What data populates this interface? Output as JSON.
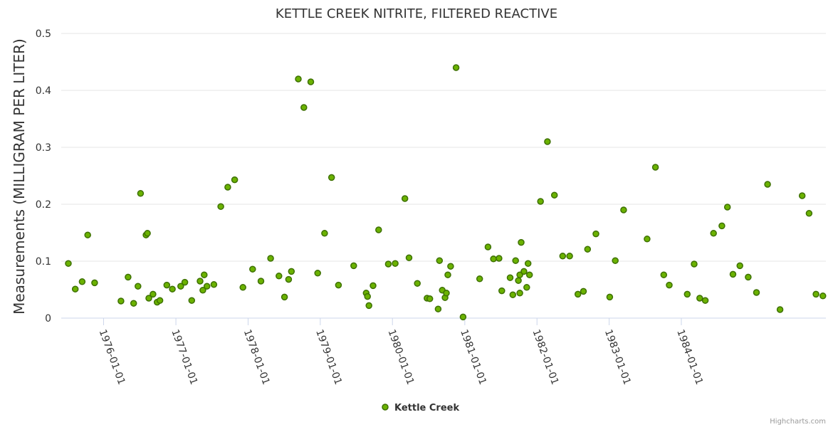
{
  "chart_data": {
    "type": "scatter",
    "title": "KETTLE CREEK NITRITE, FILTERED REACTIVE",
    "ylabel": "Measurements (MILLIGRAM PER LITER)",
    "xlabel": "",
    "ylim": [
      0,
      0.5
    ],
    "yticks": [
      "0",
      "0.1",
      "0.2",
      "0.3",
      "0.4",
      "0.5"
    ],
    "xticks": [
      "1976-01-01",
      "1977-01-01",
      "1978-01-01",
      "1979-01-01",
      "1980-01-01",
      "1981-01-01",
      "1982-01-01",
      "1983-01-01",
      "1984-01-01"
    ],
    "grid": true,
    "legend_position": "bottom-center",
    "marker_fill": "#6bb200",
    "marker_stroke": "#3d7000",
    "series": [
      {
        "name": "Kettle Creek",
        "points": [
          {
            "x": "1975-07-07",
            "y": 0.096
          },
          {
            "x": "1975-08-11",
            "y": 0.051
          },
          {
            "x": "1975-09-15",
            "y": 0.064
          },
          {
            "x": "1975-10-13",
            "y": 0.146
          },
          {
            "x": "1975-11-17",
            "y": 0.062
          },
          {
            "x": "1976-03-29",
            "y": 0.03
          },
          {
            "x": "1976-05-04",
            "y": 0.072
          },
          {
            "x": "1976-06-01",
            "y": 0.026
          },
          {
            "x": "1976-06-23",
            "y": 0.056
          },
          {
            "x": "1976-07-06",
            "y": 0.219
          },
          {
            "x": "1976-08-03",
            "y": 0.146
          },
          {
            "x": "1976-08-10",
            "y": 0.149
          },
          {
            "x": "1976-08-17",
            "y": 0.035
          },
          {
            "x": "1976-09-07",
            "y": 0.042
          },
          {
            "x": "1976-09-28",
            "y": 0.028
          },
          {
            "x": "1976-10-12",
            "y": 0.031
          },
          {
            "x": "1976-11-16",
            "y": 0.058
          },
          {
            "x": "1976-12-14",
            "y": 0.051
          },
          {
            "x": "1977-01-25",
            "y": 0.056
          },
          {
            "x": "1977-02-15",
            "y": 0.063
          },
          {
            "x": "1977-03-22",
            "y": 0.031
          },
          {
            "x": "1977-05-03",
            "y": 0.065
          },
          {
            "x": "1977-05-17",
            "y": 0.049
          },
          {
            "x": "1977-05-24",
            "y": 0.076
          },
          {
            "x": "1977-06-07",
            "y": 0.056
          },
          {
            "x": "1977-07-12",
            "y": 0.059
          },
          {
            "x": "1977-08-16",
            "y": 0.196
          },
          {
            "x": "1977-09-20",
            "y": 0.23
          },
          {
            "x": "1977-10-25",
            "y": 0.243
          },
          {
            "x": "1977-12-06",
            "y": 0.054
          },
          {
            "x": "1978-01-24",
            "y": 0.086
          },
          {
            "x": "1978-03-07",
            "y": 0.065
          },
          {
            "x": "1978-04-25",
            "y": 0.105
          },
          {
            "x": "1978-06-06",
            "y": 0.074
          },
          {
            "x": "1978-07-04",
            "y": 0.037
          },
          {
            "x": "1978-07-25",
            "y": 0.068
          },
          {
            "x": "1978-08-08",
            "y": 0.082
          },
          {
            "x": "1978-09-12",
            "y": 0.42
          },
          {
            "x": "1978-10-10",
            "y": 0.37
          },
          {
            "x": "1978-11-14",
            "y": 0.415
          },
          {
            "x": "1978-12-19",
            "y": 0.079
          },
          {
            "x": "1979-01-23",
            "y": 0.149
          },
          {
            "x": "1979-02-27",
            "y": 0.247
          },
          {
            "x": "1979-04-03",
            "y": 0.058
          },
          {
            "x": "1979-06-19",
            "y": 0.092
          },
          {
            "x": "1979-08-21",
            "y": 0.044
          },
          {
            "x": "1979-08-28",
            "y": 0.038
          },
          {
            "x": "1979-09-04",
            "y": 0.022
          },
          {
            "x": "1979-09-25",
            "y": 0.057
          },
          {
            "x": "1979-10-23",
            "y": 0.155
          },
          {
            "x": "1979-12-11",
            "y": 0.095
          },
          {
            "x": "1980-01-15",
            "y": 0.096
          },
          {
            "x": "1980-03-04",
            "y": 0.21
          },
          {
            "x": "1980-03-25",
            "y": 0.106
          },
          {
            "x": "1980-05-06",
            "y": 0.061
          },
          {
            "x": "1980-06-24",
            "y": 0.035
          },
          {
            "x": "1980-07-08",
            "y": 0.034
          },
          {
            "x": "1980-08-19",
            "y": 0.016
          },
          {
            "x": "1980-08-26",
            "y": 0.101
          },
          {
            "x": "1980-09-09",
            "y": 0.049
          },
          {
            "x": "1980-09-23",
            "y": 0.036
          },
          {
            "x": "1980-09-30",
            "y": 0.044
          },
          {
            "x": "1980-10-07",
            "y": 0.076
          },
          {
            "x": "1980-10-21",
            "y": 0.091
          },
          {
            "x": "1980-11-18",
            "y": 0.44
          },
          {
            "x": "1980-12-23",
            "y": 0.002
          },
          {
            "x": "1981-03-17",
            "y": 0.069
          },
          {
            "x": "1981-04-28",
            "y": 0.125
          },
          {
            "x": "1981-05-26",
            "y": 0.104
          },
          {
            "x": "1981-06-23",
            "y": 0.105
          },
          {
            "x": "1981-07-07",
            "y": 0.048
          },
          {
            "x": "1981-08-18",
            "y": 0.071
          },
          {
            "x": "1981-09-01",
            "y": 0.041
          },
          {
            "x": "1981-09-15",
            "y": 0.101
          },
          {
            "x": "1981-09-29",
            "y": 0.066
          },
          {
            "x": "1981-10-06",
            "y": 0.044
          },
          {
            "x": "1981-10-06",
            "y": 0.076
          },
          {
            "x": "1981-10-13",
            "y": 0.133
          },
          {
            "x": "1981-10-27",
            "y": 0.082
          },
          {
            "x": "1981-11-10",
            "y": 0.054
          },
          {
            "x": "1981-11-17",
            "y": 0.096
          },
          {
            "x": "1981-11-24",
            "y": 0.076
          },
          {
            "x": "1982-01-19",
            "y": 0.205
          },
          {
            "x": "1982-02-23",
            "y": 0.31
          },
          {
            "x": "1982-03-30",
            "y": 0.216
          },
          {
            "x": "1982-05-11",
            "y": 0.109
          },
          {
            "x": "1982-06-15",
            "y": 0.109
          },
          {
            "x": "1982-07-27",
            "y": 0.042
          },
          {
            "x": "1982-08-24",
            "y": 0.047
          },
          {
            "x": "1982-09-14",
            "y": 0.121
          },
          {
            "x": "1982-10-26",
            "y": 0.148
          },
          {
            "x": "1983-01-04",
            "y": 0.037
          },
          {
            "x": "1983-02-01",
            "y": 0.101
          },
          {
            "x": "1983-03-15",
            "y": 0.19
          },
          {
            "x": "1983-07-12",
            "y": 0.139
          },
          {
            "x": "1983-08-23",
            "y": 0.265
          },
          {
            "x": "1983-10-04",
            "y": 0.076
          },
          {
            "x": "1983-11-01",
            "y": 0.058
          },
          {
            "x": "1984-01-31",
            "y": 0.042
          },
          {
            "x": "1984-03-06",
            "y": 0.095
          },
          {
            "x": "1984-04-03",
            "y": 0.035
          },
          {
            "x": "1984-05-01",
            "y": 0.031
          },
          {
            "x": "1984-06-12",
            "y": 0.149
          },
          {
            "x": "1984-07-24",
            "y": 0.162
          },
          {
            "x": "1984-08-21",
            "y": 0.195
          },
          {
            "x": "1984-09-18",
            "y": 0.077
          },
          {
            "x": "1984-10-23",
            "y": 0.092
          },
          {
            "x": "1984-12-04",
            "y": 0.072
          },
          {
            "x": "1985-01-15",
            "y": 0.045
          },
          {
            "x": "1985-03-12",
            "y": 0.235
          },
          {
            "x": "1985-05-14",
            "y": 0.015
          },
          {
            "x": "1985-09-03",
            "y": 0.215
          },
          {
            "x": "1985-10-08",
            "y": 0.184
          },
          {
            "x": "1985-11-12",
            "y": 0.042
          },
          {
            "x": "1985-12-17",
            "y": 0.039
          }
        ]
      }
    ]
  },
  "credits": "Highcharts.com"
}
